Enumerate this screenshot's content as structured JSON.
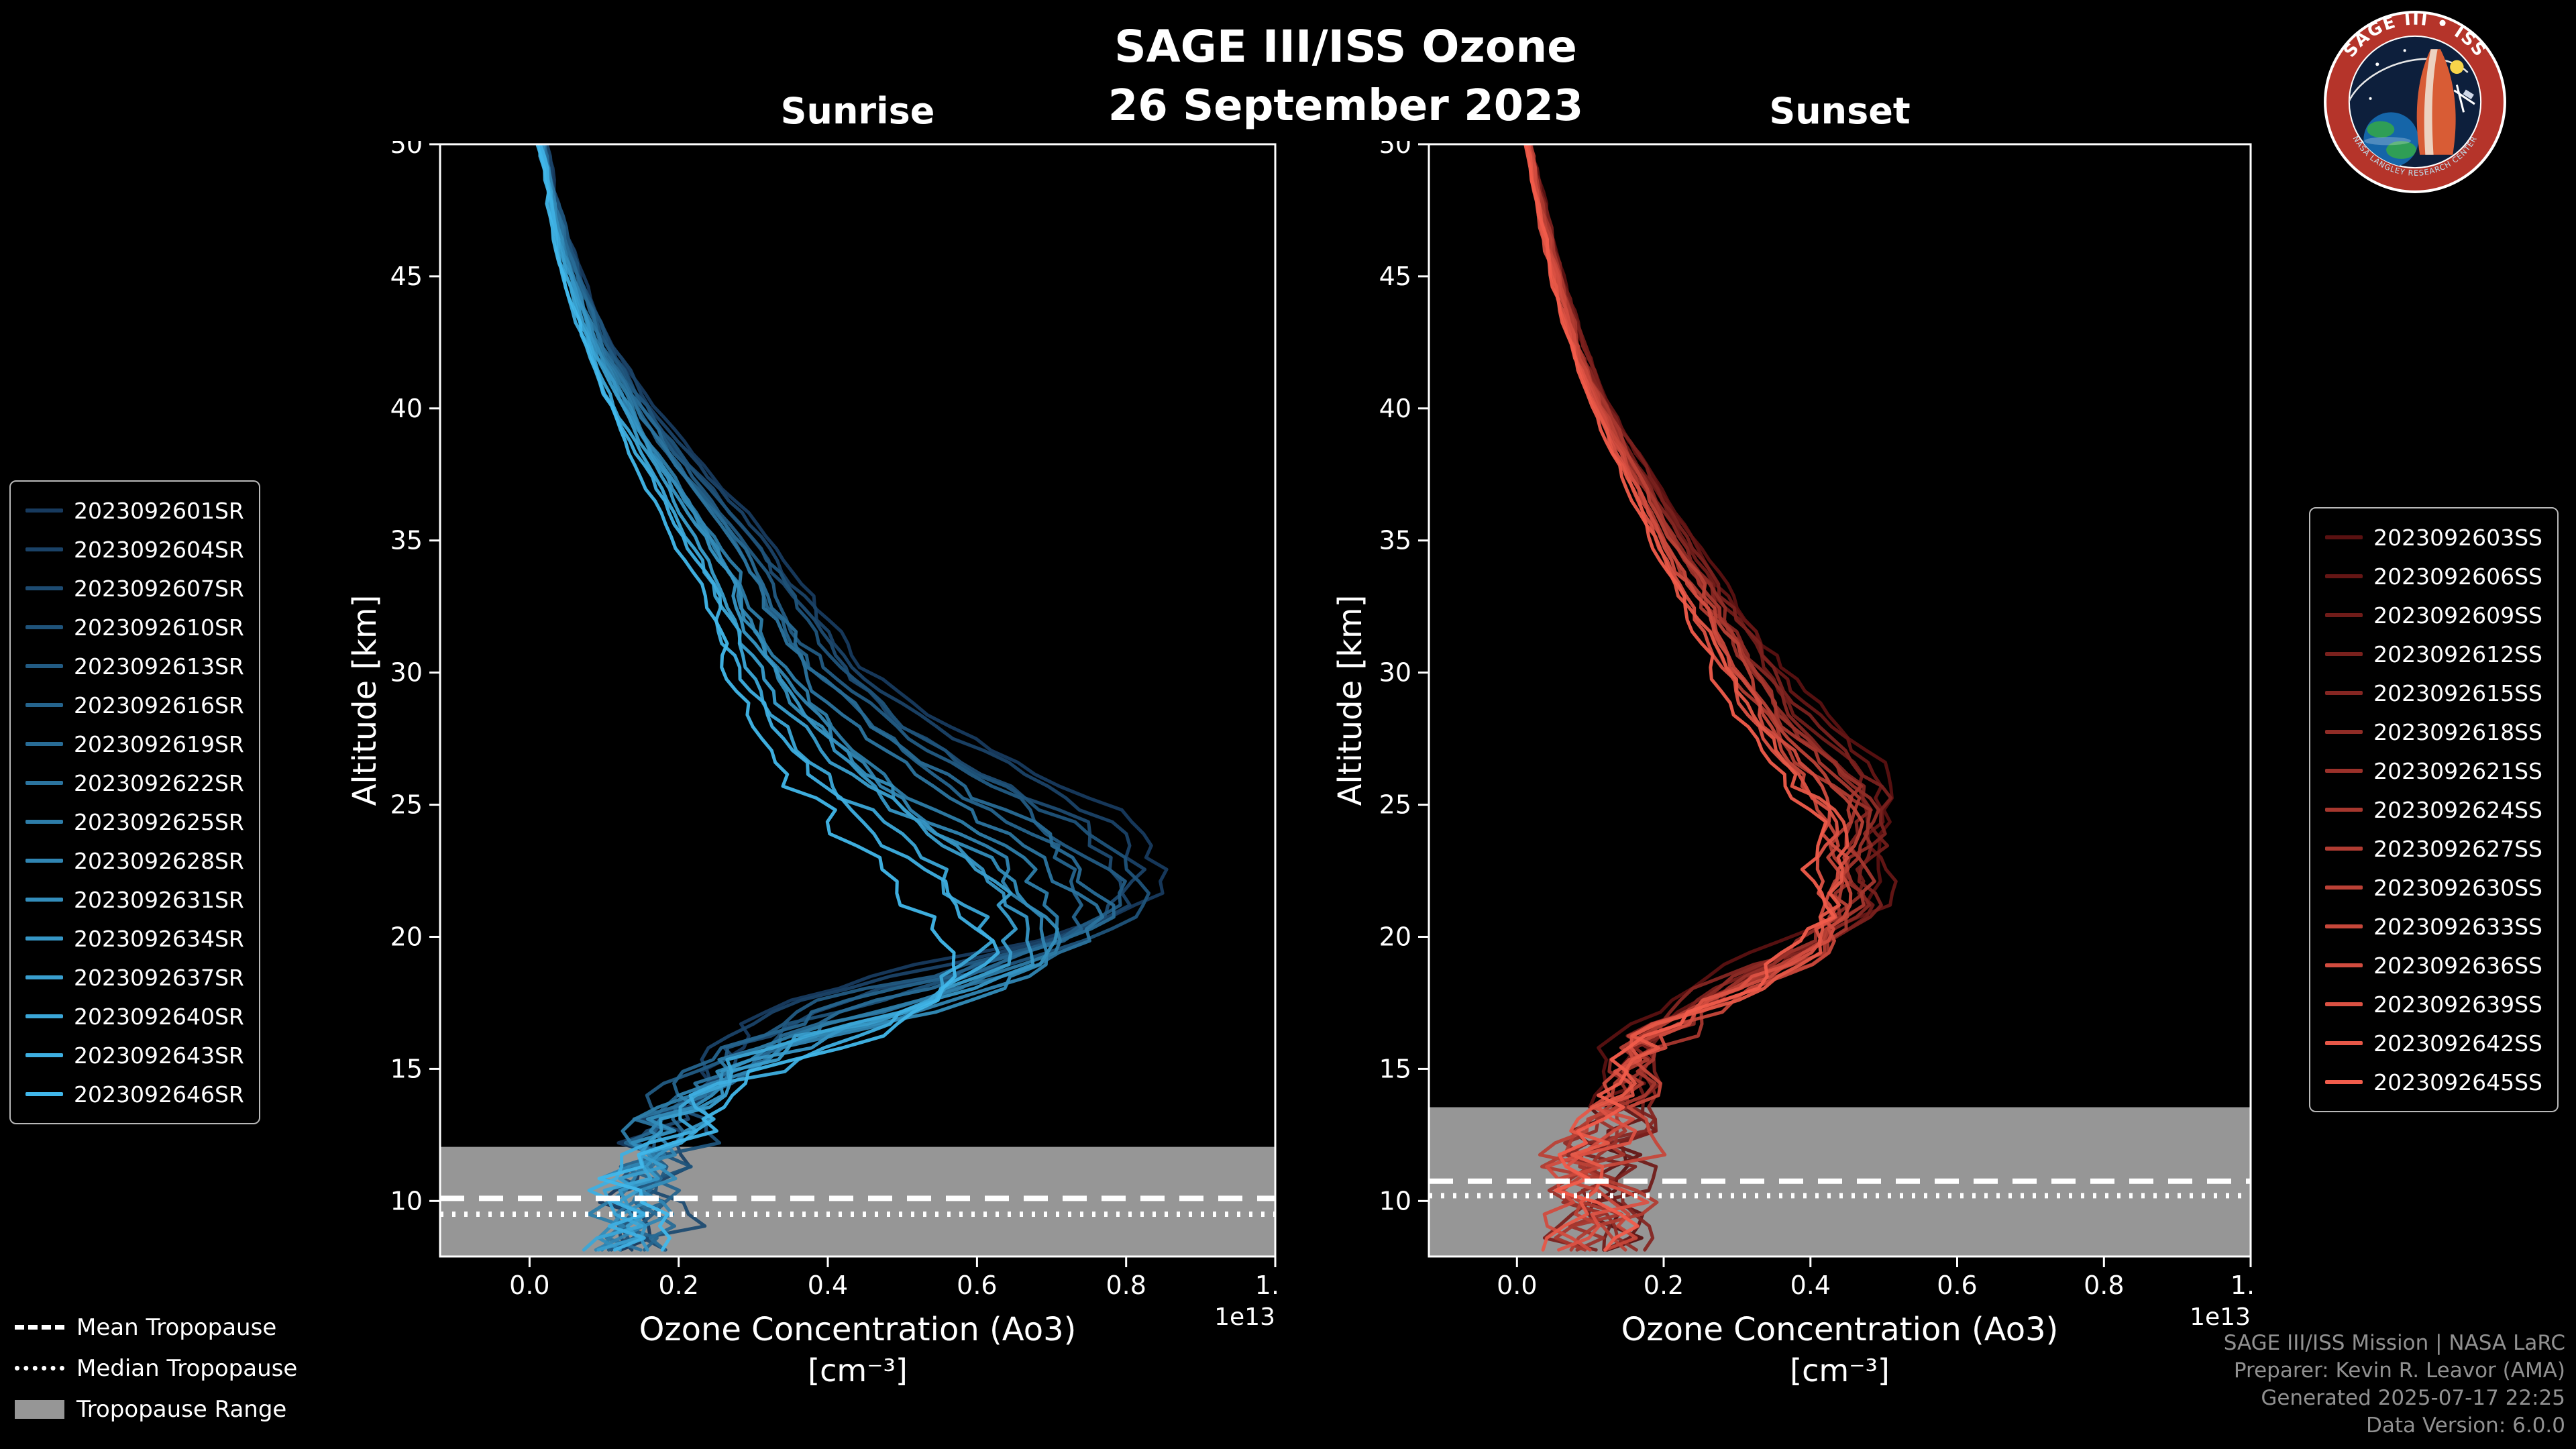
{
  "header": {
    "title": "SAGE III/ISS Ozone",
    "subtitle": "26 September 2023"
  },
  "logo": {
    "top_text": "SAGE III • ISS",
    "bottom_text": "NASA LANGLEY RESEARCH CENTER"
  },
  "panels": {
    "sunrise": {
      "title": "Sunrise",
      "xlabel": "Ozone Concentration (Ao3)",
      "xunits": "[cm⁻³]",
      "offset_label": "1e13",
      "ylabel": "Altitude [km]"
    },
    "sunset": {
      "title": "Sunset",
      "xlabel": "Ozone Concentration (Ao3)",
      "xunits": "[cm⁻³]",
      "offset_label": "1e13",
      "ylabel": "Altitude [km]"
    }
  },
  "tropopause_legend": {
    "mean_label": "Mean Tropopause",
    "median_label": "Median Tropopause",
    "range_label": "Tropopause Range"
  },
  "credits": {
    "line1": "SAGE III/ISS Mission | NASA LaRC",
    "line2": "Preparer: Kevin R. Leavor (AMA)",
    "line3": "Generated 2025-07-17 22:25",
    "line4": "Data Version: 6.0.0"
  },
  "chart_data": [
    {
      "type": "line",
      "panel": "sunrise",
      "title": "Sunrise",
      "xlabel": "Ozone Concentration (Ao3) [cm⁻³]",
      "ylabel": "Altitude [km]",
      "x_offset_label": "1e13",
      "xlim": [
        -0.12,
        1.0
      ],
      "ylim": [
        7.9,
        50
      ],
      "xticks": [
        0.0,
        0.2,
        0.4,
        0.6,
        0.8,
        1.0
      ],
      "yticks": [
        10,
        15,
        20,
        25,
        30,
        35,
        40,
        45,
        50
      ],
      "grid": false,
      "legend_position": "left-outside",
      "series_names": [
        "2023092601SR",
        "2023092604SR",
        "2023092607SR",
        "2023092610SR",
        "2023092613SR",
        "2023092616SR",
        "2023092619SR",
        "2023092622SR",
        "2023092625SR",
        "2023092628SR",
        "2023092631SR",
        "2023092634SR",
        "2023092637SR",
        "2023092640SR",
        "2023092643SR",
        "2023092646SR"
      ],
      "color_scale": {
        "start": "#173a5e",
        "end": "#41b7ea"
      },
      "band_color": "#969696",
      "tropopause_line_color": "#ffffff",
      "base_profile_alt_km_vs_conc_1e13": [
        [
          50,
          0.015
        ],
        [
          48,
          0.025
        ],
        [
          46,
          0.04
        ],
        [
          44,
          0.06
        ],
        [
          42,
          0.085
        ],
        [
          40,
          0.12
        ],
        [
          38,
          0.155
        ],
        [
          36,
          0.195
        ],
        [
          34,
          0.235
        ],
        [
          32,
          0.265
        ],
        [
          30,
          0.295
        ],
        [
          28,
          0.335
        ],
        [
          26,
          0.39
        ],
        [
          24,
          0.47
        ],
        [
          22,
          0.555
        ],
        [
          21,
          0.59
        ],
        [
          20,
          0.62
        ],
        [
          19,
          0.635
        ],
        [
          18,
          0.62
        ],
        [
          17,
          0.56
        ],
        [
          16,
          0.46
        ],
        [
          15,
          0.34
        ],
        [
          14,
          0.26
        ],
        [
          13,
          0.21
        ],
        [
          12,
          0.175
        ],
        [
          11,
          0.155
        ],
        [
          10,
          0.14
        ],
        [
          9,
          0.13
        ],
        [
          8,
          0.12
        ]
      ],
      "profile_variation": {
        "amp_range": [
          0.93,
          1.35
        ],
        "peak_shift_km": [
          -3.5,
          0.0
        ]
      },
      "peak": {
        "concentration_1e13_range": [
          0.6,
          0.86
        ],
        "altitude_km_range": [
          16,
          21
        ]
      },
      "tropopause": {
        "mean_km": 10.1,
        "median_km": 9.5,
        "range_km": [
          7.9,
          12.05
        ]
      }
    },
    {
      "type": "line",
      "panel": "sunset",
      "title": "Sunset",
      "xlabel": "Ozone Concentration (Ao3) [cm⁻³]",
      "ylabel": "Altitude [km]",
      "x_offset_label": "1e13",
      "xlim": [
        -0.12,
        1.0
      ],
      "ylim": [
        7.9,
        50
      ],
      "xticks": [
        0.0,
        0.2,
        0.4,
        0.6,
        0.8,
        1.0
      ],
      "yticks": [
        10,
        15,
        20,
        25,
        30,
        35,
        40,
        45,
        50
      ],
      "grid": false,
      "legend_position": "right-outside",
      "series_names": [
        "2023092603SS",
        "2023092606SS",
        "2023092609SS",
        "2023092612SS",
        "2023092615SS",
        "2023092618SS",
        "2023092621SS",
        "2023092624SS",
        "2023092627SS",
        "2023092630SS",
        "2023092633SS",
        "2023092636SS",
        "2023092639SS",
        "2023092642SS",
        "2023092645SS"
      ],
      "color_scale": {
        "start": "#5a1111",
        "end": "#f15c4b"
      },
      "band_color": "#969696",
      "tropopause_line_color": "#ffffff",
      "base_profile_alt_km_vs_conc_1e13": [
        [
          50,
          0.015
        ],
        [
          48,
          0.03
        ],
        [
          46,
          0.045
        ],
        [
          44,
          0.065
        ],
        [
          42,
          0.085
        ],
        [
          40,
          0.115
        ],
        [
          38,
          0.15
        ],
        [
          36,
          0.185
        ],
        [
          34,
          0.225
        ],
        [
          32,
          0.265
        ],
        [
          30,
          0.305
        ],
        [
          28,
          0.35
        ],
        [
          26,
          0.41
        ],
        [
          25,
          0.445
        ],
        [
          24,
          0.46
        ],
        [
          23,
          0.455
        ],
        [
          22,
          0.445
        ],
        [
          21,
          0.45
        ],
        [
          20,
          0.44
        ],
        [
          19,
          0.4
        ],
        [
          18,
          0.32
        ],
        [
          17,
          0.25
        ],
        [
          16,
          0.2
        ],
        [
          15,
          0.17
        ],
        [
          14,
          0.15
        ],
        [
          13,
          0.135
        ],
        [
          12,
          0.12
        ],
        [
          11,
          0.105
        ],
        [
          10,
          0.12
        ],
        [
          9,
          0.105
        ],
        [
          8,
          0.1
        ]
      ],
      "profile_variation": {
        "amp_range": [
          0.92,
          1.12
        ],
        "peak_shift_km": [
          -1.5,
          0.5
        ]
      },
      "peak": {
        "concentration_1e13_range": [
          0.42,
          0.52
        ],
        "altitude_km_range": [
          19,
          25
        ]
      },
      "tropopause": {
        "mean_km": 10.75,
        "median_km": 10.2,
        "range_km": [
          7.9,
          13.55
        ]
      }
    }
  ]
}
